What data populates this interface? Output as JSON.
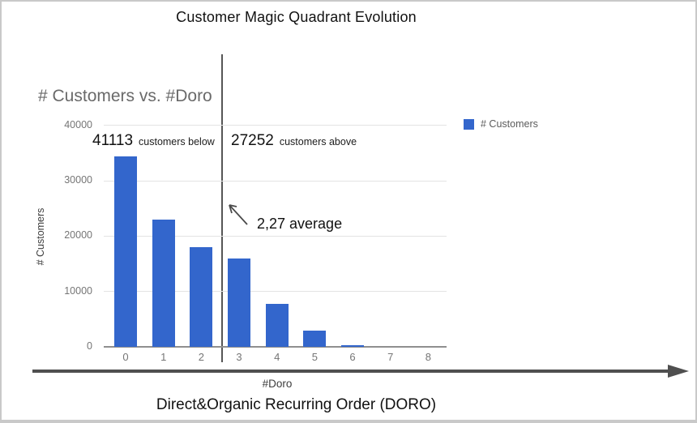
{
  "page": {
    "title": "Customer Magic Quadrant Evolution",
    "footer_title": "Direct&Organic Recurring Order (DORO)"
  },
  "chart": {
    "title": "# Customers vs. #Doro",
    "legend": {
      "label": "# Customers",
      "color": "#3366cc"
    },
    "annotations": {
      "below": {
        "value": "41113",
        "label": "customers below"
      },
      "above": {
        "value": "27252",
        "label": "customers above"
      },
      "average": "2,27 average"
    },
    "y_axis_title": "# Customers",
    "x_axis_title": "#Doro"
  },
  "chart_data": {
    "type": "bar",
    "title": "# Customers vs. #Doro",
    "xlabel": "#Doro",
    "ylabel": "# Customers",
    "categories": [
      "0",
      "1",
      "2",
      "3",
      "4",
      "5",
      "6",
      "7",
      "8"
    ],
    "values": [
      34400,
      23000,
      18000,
      16000,
      7800,
      2900,
      250,
      0,
      0
    ],
    "ylim": [
      0,
      40000
    ],
    "yticks": [
      0,
      10000,
      20000,
      30000,
      40000
    ],
    "legend_entries": [
      "# Customers"
    ],
    "legend_position": "right",
    "grid": true,
    "bar_color": "#3366cc",
    "customers_below": 41113,
    "customers_above": 27252,
    "average_doro": 2.27,
    "annotations": [
      "41113 customers below",
      "27252 customers above",
      "2,27 average"
    ]
  }
}
